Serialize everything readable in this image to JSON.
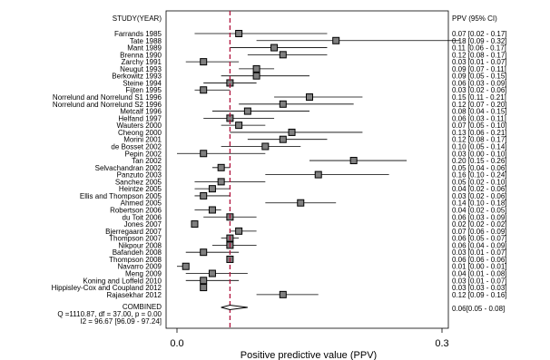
{
  "chart_data": {
    "type": "forest",
    "header_left": "STUDY(YEAR)",
    "header_right": "PPV (95% CI)",
    "xlabel": "Positive predictive value (PPV)",
    "xlim": [
      0.0,
      0.3
    ],
    "xticks": [
      "0.0",
      "0.3"
    ],
    "pooled_line": 0.06,
    "studies": [
      {
        "name": "Farrands 1985",
        "est": 0.07,
        "lo": 0.02,
        "hi": 0.17,
        "ci": "0.07 [0.02 - 0.17]"
      },
      {
        "name": "Tate 1988",
        "est": 0.18,
        "lo": 0.09,
        "hi": 0.32,
        "ci": "0.18 [0.09 - 0.32]"
      },
      {
        "name": "Mant 1989",
        "est": 0.11,
        "lo": 0.06,
        "hi": 0.17,
        "ci": "0.11 [0.06 - 0.17]"
      },
      {
        "name": "Brenna 1990",
        "est": 0.12,
        "lo": 0.08,
        "hi": 0.17,
        "ci": "0.12 [0.08 - 0.17]"
      },
      {
        "name": "Zarchy 1991",
        "est": 0.03,
        "lo": 0.01,
        "hi": 0.07,
        "ci": "0.03 [0.01 - 0.07]"
      },
      {
        "name": "Neugut 1993",
        "est": 0.09,
        "lo": 0.07,
        "hi": 0.11,
        "ci": "0.09 [0.07 - 0.11]"
      },
      {
        "name": "Berkowitz 1993",
        "est": 0.09,
        "lo": 0.05,
        "hi": 0.15,
        "ci": "0.09 [0.05 - 0.15]"
      },
      {
        "name": "Steine 1994",
        "est": 0.06,
        "lo": 0.03,
        "hi": 0.09,
        "ci": "0.06 [0.03 - 0.09]"
      },
      {
        "name": "Fijten 1995",
        "est": 0.03,
        "lo": 0.02,
        "hi": 0.06,
        "ci": "0.03 [0.02 - 0.06]"
      },
      {
        "name": "Norrelund and Norrelund S1 1996",
        "est": 0.15,
        "lo": 0.11,
        "hi": 0.21,
        "ci": "0.15 [0.11 - 0.21]"
      },
      {
        "name": "Norrelund and Norrelund S2 1996",
        "est": 0.12,
        "lo": 0.07,
        "hi": 0.2,
        "ci": "0.12 [0.07 - 0.20]"
      },
      {
        "name": "Metcalf 1996",
        "est": 0.08,
        "lo": 0.04,
        "hi": 0.15,
        "ci": "0.08 [0.04 - 0.15]"
      },
      {
        "name": "Helfand 1997",
        "est": 0.06,
        "lo": 0.03,
        "hi": 0.11,
        "ci": "0.06 [0.03 - 0.11]"
      },
      {
        "name": "Wauters 2000",
        "est": 0.07,
        "lo": 0.05,
        "hi": 0.1,
        "ci": "0.07 [0.05 - 0.10]"
      },
      {
        "name": "Cheong 2000",
        "est": 0.13,
        "lo": 0.06,
        "hi": 0.21,
        "ci": "0.13 [0.06 - 0.21]"
      },
      {
        "name": "Morini 2001",
        "est": 0.12,
        "lo": 0.08,
        "hi": 0.17,
        "ci": "0.12 [0.08 - 0.17]"
      },
      {
        "name": "de Bosset 2002",
        "est": 0.1,
        "lo": 0.05,
        "hi": 0.14,
        "ci": "0.10 [0.05 - 0.14]"
      },
      {
        "name": "Pepin 2002",
        "est": 0.03,
        "lo": 0.0,
        "hi": 0.1,
        "ci": "0.03 [0.00 - 0.10]"
      },
      {
        "name": "Tan 2002",
        "est": 0.2,
        "lo": 0.15,
        "hi": 0.26,
        "ci": "0.20 [0.15 - 0.26]"
      },
      {
        "name": "Selvachandran 2002",
        "est": 0.05,
        "lo": 0.04,
        "hi": 0.06,
        "ci": "0.05 [0.04 - 0.06]"
      },
      {
        "name": "Panzuto 2003",
        "est": 0.16,
        "lo": 0.1,
        "hi": 0.24,
        "ci": "0.16 [0.10 - 0.24]"
      },
      {
        "name": "Sanchez 2005",
        "est": 0.05,
        "lo": 0.02,
        "hi": 0.1,
        "ci": "0.05 [0.02 - 0.10]"
      },
      {
        "name": "Heintze 2005",
        "est": 0.04,
        "lo": 0.02,
        "hi": 0.06,
        "ci": "0.04 [0.02 - 0.06]"
      },
      {
        "name": "Ellis and Thompson 2005",
        "est": 0.03,
        "lo": 0.02,
        "hi": 0.06,
        "ci": "0.03 [0.02 - 0.06]"
      },
      {
        "name": "Ahmed 2005",
        "est": 0.14,
        "lo": 0.1,
        "hi": 0.18,
        "ci": "0.14 [0.10 - 0.18]"
      },
      {
        "name": "Robertson 2006",
        "est": 0.04,
        "lo": 0.02,
        "hi": 0.05,
        "ci": "0.04 [0.02 - 0.05]"
      },
      {
        "name": "du Toit 2006",
        "est": 0.06,
        "lo": 0.03,
        "hi": 0.09,
        "ci": "0.06 [0.03 - 0.09]"
      },
      {
        "name": "Jones 2007",
        "est": 0.02,
        "lo": 0.02,
        "hi": 0.02,
        "ci": "0.02 [0.02 - 0.02]"
      },
      {
        "name": "Bjerregaard 2007",
        "est": 0.07,
        "lo": 0.06,
        "hi": 0.09,
        "ci": "0.07 [0.06 - 0.09]"
      },
      {
        "name": "Thompson 2007",
        "est": 0.06,
        "lo": 0.05,
        "hi": 0.07,
        "ci": "0.06 [0.05 - 0.07]"
      },
      {
        "name": "Nikpour 2008",
        "est": 0.06,
        "lo": 0.04,
        "hi": 0.09,
        "ci": "0.06 [0.04 - 0.09]"
      },
      {
        "name": "Bafandeh 2008",
        "est": 0.03,
        "lo": 0.01,
        "hi": 0.07,
        "ci": "0.03 [0.01 - 0.07]"
      },
      {
        "name": "Thompson 2008",
        "est": 0.06,
        "lo": 0.06,
        "hi": 0.06,
        "ci": "0.06 [0.06 - 0.06]"
      },
      {
        "name": "Navarro 2009",
        "est": 0.01,
        "lo": 0.0,
        "hi": 0.01,
        "ci": "0.01 [0.00 - 0.01]"
      },
      {
        "name": "Meng 2009",
        "est": 0.04,
        "lo": 0.01,
        "hi": 0.08,
        "ci": "0.04 [0.01 - 0.08]"
      },
      {
        "name": "Koning and Loffeld 2010",
        "est": 0.03,
        "lo": 0.01,
        "hi": 0.07,
        "ci": "0.03 [0.01 - 0.07]"
      },
      {
        "name": "Hippisley-Cox and Coupland 2012",
        "est": 0.03,
        "lo": 0.03,
        "hi": 0.03,
        "ci": "0.03 [0.03 - 0.03]"
      },
      {
        "name": "Rajasekhar 2012",
        "est": 0.12,
        "lo": 0.09,
        "hi": 0.16,
        "ci": "0.12 [0.09 - 0.16]"
      }
    ],
    "combined": {
      "name": "COMBINED",
      "est": 0.06,
      "lo": 0.05,
      "hi": 0.08,
      "ci": "0.06[0.05 - 0.08]"
    },
    "stats_line1": "Q =1110.87, df = 37.00, p = 0.00",
    "stats_line2": "I2 = 96.67 [96.09 - 97.24]"
  }
}
